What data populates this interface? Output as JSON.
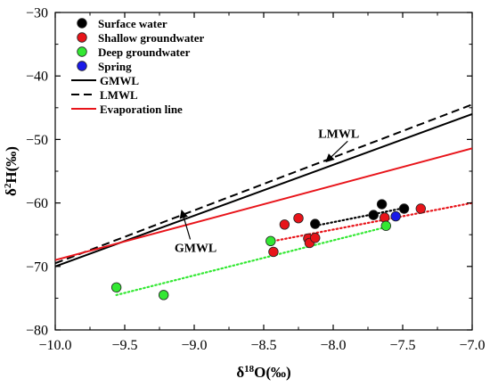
{
  "chart_data": {
    "type": "scatter",
    "x_axis": {
      "label_main": "δ",
      "label_sup": "18",
      "label_rest": "O(‰)",
      "lim": [
        -10.0,
        -7.0
      ],
      "ticks": [
        -10.0,
        -9.5,
        -9.0,
        -8.5,
        -8.0,
        -7.5,
        -7.0
      ],
      "tick_labels": [
        "−10.0",
        "−9.5",
        "−9.0",
        "−8.5",
        "−8.0",
        "−7.5",
        "−7.0"
      ]
    },
    "y_axis": {
      "label_main": "δ",
      "label_sup": "2",
      "label_rest": "H(‰)",
      "lim": [
        -80,
        -30
      ],
      "ticks": [
        -80,
        -70,
        -60,
        -50,
        -40,
        -30
      ],
      "tick_labels": [
        "−80",
        "−70",
        "−60",
        "−50",
        "−40",
        "−30"
      ]
    },
    "legend": {
      "position": "top-left",
      "items": [
        {
          "kind": "marker",
          "label": "Surface water",
          "color": "#000000"
        },
        {
          "kind": "marker",
          "label": "Shallow groundwater",
          "color": "#e8141a"
        },
        {
          "kind": "marker",
          "label": "Deep groundwater",
          "color": "#33e833"
        },
        {
          "kind": "marker",
          "label": "Spring",
          "color": "#1a1ae8"
        },
        {
          "kind": "line",
          "label": "GMWL",
          "color": "#000000",
          "dash": "solid"
        },
        {
          "kind": "line",
          "label": "LMWL",
          "color": "#000000",
          "dash": "dashed"
        },
        {
          "kind": "line",
          "label": "Evaporation line",
          "color": "#e8141a",
          "dash": "solid"
        }
      ]
    },
    "series": [
      {
        "name": "Surface water",
        "color": "#000000",
        "points": [
          [
            -8.13,
            -63.3
          ],
          [
            -7.71,
            -61.9
          ],
          [
            -7.65,
            -60.2
          ],
          [
            -7.49,
            -60.9
          ]
        ]
      },
      {
        "name": "Shallow groundwater",
        "color": "#e8141a",
        "points": [
          [
            -8.43,
            -67.7
          ],
          [
            -8.35,
            -63.4
          ],
          [
            -8.25,
            -62.4
          ],
          [
            -8.18,
            -65.6
          ],
          [
            -8.17,
            -66.3
          ],
          [
            -8.13,
            -65.5
          ],
          [
            -7.63,
            -62.3
          ],
          [
            -7.37,
            -60.9
          ]
        ]
      },
      {
        "name": "Deep groundwater",
        "color": "#33e833",
        "points": [
          [
            -9.56,
            -73.3
          ],
          [
            -9.22,
            -74.5
          ],
          [
            -8.45,
            -66.0
          ],
          [
            -7.62,
            -63.6
          ]
        ]
      },
      {
        "name": "Spring",
        "color": "#1a1ae8",
        "points": [
          [
            -7.55,
            -62.1
          ]
        ]
      }
    ],
    "lines": [
      {
        "name": "GMWL",
        "color": "#000000",
        "dash": "solid",
        "x": [
          -10.0,
          -7.0
        ],
        "y": [
          -70.0,
          -46.0
        ]
      },
      {
        "name": "LMWL",
        "color": "#000000",
        "dash": "dashed",
        "x": [
          -10.0,
          -7.0
        ],
        "y": [
          -69.5,
          -44.5
        ]
      },
      {
        "name": "Evaporation line",
        "color": "#e8141a",
        "dash": "solid",
        "x": [
          -10.0,
          -7.0
        ],
        "y": [
          -69.0,
          -51.4
        ]
      },
      {
        "name": "Surface water trend",
        "color": "#000000",
        "dash": "dotted",
        "x": [
          -8.13,
          -7.49
        ],
        "y": [
          -63.6,
          -60.8
        ]
      },
      {
        "name": "Shallow groundwater trend",
        "color": "#e8141a",
        "dash": "dotted",
        "x": [
          -8.43,
          -7.0
        ],
        "y": [
          -66.0,
          -60.0
        ]
      },
      {
        "name": "Deep groundwater trend",
        "color": "#33e833",
        "dash": "dotted",
        "x": [
          -9.56,
          -7.62
        ],
        "y": [
          -74.5,
          -63.8
        ]
      }
    ],
    "annotations": [
      {
        "text": "LMWL",
        "x": -7.96,
        "y": -49.7,
        "arrow_to": [
          -8.05,
          -53.5
        ]
      },
      {
        "text": "GMWL",
        "x": -8.99,
        "y": -67.7,
        "arrow_to": [
          -9.09,
          -61.2
        ]
      }
    ]
  }
}
